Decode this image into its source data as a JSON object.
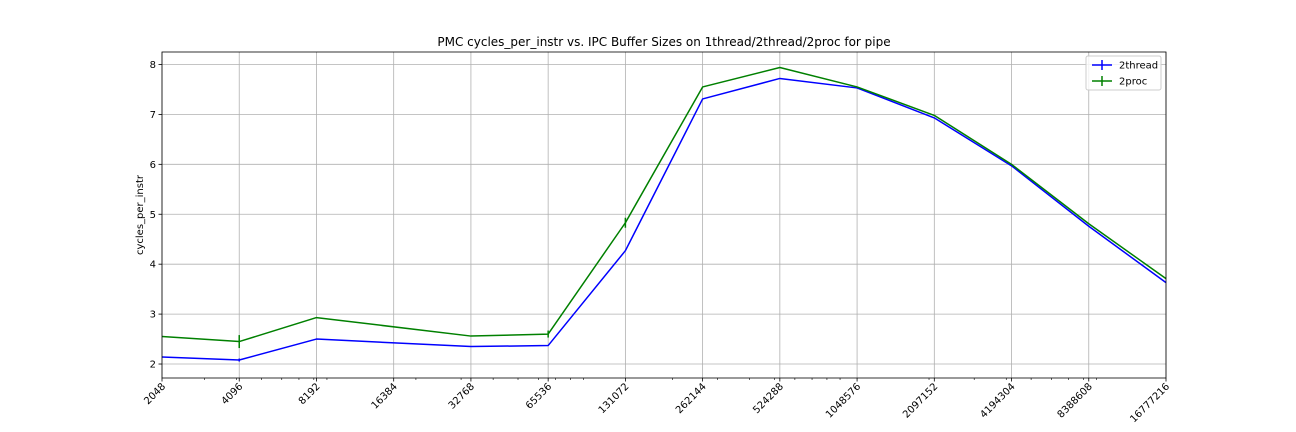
{
  "chart_data": {
    "type": "line",
    "title": "PMC cycles_per_instr vs. IPC Buffer Sizes on 1thread/2thread/2proc for pipe",
    "xlabel": "",
    "ylabel": "cycles_per_instr",
    "x_scale": "log2",
    "x": [
      2048,
      4096,
      8192,
      16384,
      32768,
      65536,
      131072,
      262144,
      524288,
      1048576,
      2097152,
      4194304,
      8388608,
      16777216
    ],
    "x_tick_labels": [
      "2048",
      "4096",
      "8192",
      "16384",
      "32768",
      "65536",
      "131072",
      "262144",
      "524288",
      "1048576",
      "2097152",
      "4194304",
      "8388608",
      "16777216"
    ],
    "xlim": [
      2048,
      16777216
    ],
    "ylim": [
      1.72,
      8.25
    ],
    "y_ticks": [
      2,
      3,
      4,
      5,
      6,
      7,
      8
    ],
    "grid": true,
    "legend_position": "top-right",
    "series": [
      {
        "name": "2thread",
        "color": "#0000ff",
        "x": [
          2048,
          4096,
          8192,
          32768,
          65536,
          131072,
          262144,
          524288,
          1048576,
          2097152,
          4194304,
          8388608,
          16777216
        ],
        "values": [
          2.14,
          2.08,
          2.5,
          2.35,
          2.37,
          4.27,
          7.31,
          7.72,
          7.53,
          6.93,
          5.97,
          4.76,
          3.63
        ],
        "errors": [
          0,
          0.03,
          0,
          0,
          0,
          0,
          0,
          0,
          0,
          0,
          0,
          0,
          0
        ]
      },
      {
        "name": "2proc",
        "color": "#008000",
        "x": [
          2048,
          4096,
          8192,
          32768,
          65536,
          131072,
          262144,
          524288,
          1048576,
          2097152,
          4194304,
          8388608,
          16777216
        ],
        "values": [
          2.55,
          2.45,
          2.93,
          2.56,
          2.6,
          4.83,
          7.55,
          7.94,
          7.55,
          6.98,
          6.0,
          4.81,
          3.71
        ],
        "errors": [
          0,
          0.13,
          0,
          0,
          0.07,
          0.1,
          0,
          0,
          0,
          0,
          0,
          0,
          0
        ]
      }
    ]
  }
}
